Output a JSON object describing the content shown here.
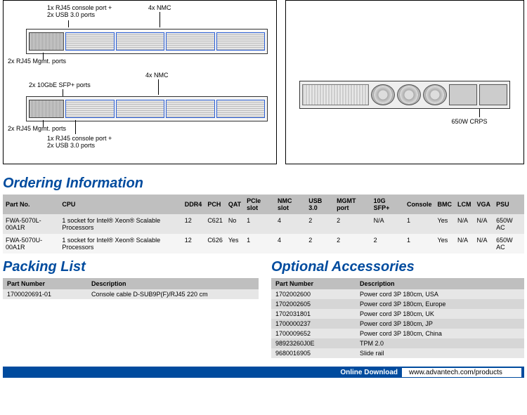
{
  "diagrams": {
    "left": {
      "labels": {
        "console_usb": "1x RJ45 console port +\n2x USB 3.0 ports",
        "nmc4": "4x NMC",
        "mgmt": "2x RJ45 Mgmt. ports",
        "sfp": "2x 10GbE SFP+ ports",
        "mgmt2": "2x RJ45 Mgmt. ports",
        "console_usb2": "1x RJ45 console port +\n2x USB 3.0 ports",
        "nmc4b": "4x NMC"
      }
    },
    "right": {
      "labels": {
        "crps": "650W CRPS"
      }
    }
  },
  "sections": {
    "ordering": "Ordering Information",
    "packing": "Packing List",
    "accessories": "Optional Accessories"
  },
  "ordering_table": {
    "headers": [
      "Part No.",
      "CPU",
      "DDR4",
      "PCH",
      "QAT",
      "PCIe slot",
      "NMC slot",
      "USB 3.0",
      "MGMT port",
      "10G SFP+",
      "Console",
      "BMC",
      "LCM",
      "VGA",
      "PSU"
    ],
    "rows": [
      [
        "FWA-5070L-00A1R",
        "1 socket for Intel® Xeon® Scalable Processors",
        "12",
        "C621",
        "No",
        "1",
        "4",
        "2",
        "2",
        "N/A",
        "1",
        "Yes",
        "N/A",
        "N/A",
        "650W AC"
      ],
      [
        "FWA-5070U-00A1R",
        "1 socket for Intel® Xeon® Scalable Processors",
        "12",
        "C626",
        "Yes",
        "1",
        "4",
        "2",
        "2",
        "2",
        "1",
        "Yes",
        "N/A",
        "N/A",
        "650W AC"
      ]
    ]
  },
  "packing_table": {
    "headers": [
      "Part Number",
      "Description"
    ],
    "rows": [
      [
        "1700020691-01",
        "Console cable D-SUB9P(F)/RJ45 220 cm"
      ]
    ]
  },
  "accessories_table": {
    "headers": [
      "Part Number",
      "Description"
    ],
    "rows": [
      [
        "1702002600",
        "Power cord 3P 180cm, USA"
      ],
      [
        "1702002605",
        "Power cord 3P 180cm, Europe"
      ],
      [
        "1702031801",
        "Power cord 3P 180cm, UK"
      ],
      [
        "1700000237",
        "Power cord 3P 180cm, JP"
      ],
      [
        "1700009652",
        "Power cord 3P 180cm, China"
      ],
      [
        "98923260J0E",
        "TPM 2.0"
      ],
      [
        "9680016905",
        "Slide rail"
      ]
    ]
  },
  "footer": {
    "label": "Online Download",
    "url": "www.advantech.com/products"
  }
}
